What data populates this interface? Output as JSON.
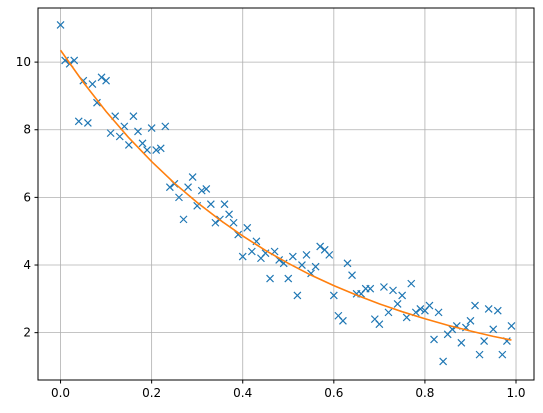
{
  "chart_data": {
    "type": "scatter",
    "xlim": [
      -0.0495,
      1.0395
    ],
    "ylim": [
      0.6,
      11.6
    ],
    "xticks": [
      {
        "value": 0,
        "label": "0.0"
      },
      {
        "value": 0.2,
        "label": "0.2"
      },
      {
        "value": 0.4,
        "label": "0.4"
      },
      {
        "value": 0.6,
        "label": "0.6"
      },
      {
        "value": 0.8,
        "label": "0.8"
      },
      {
        "value": 1,
        "label": "1.0"
      }
    ],
    "yticks": [
      2,
      4,
      6,
      8,
      10
    ],
    "grid": true,
    "series": [
      {
        "type": "scatter",
        "marker": "x",
        "color": "#1f77b4",
        "x": [
          0.0,
          0.01,
          0.02,
          0.03,
          0.04,
          0.05,
          0.06,
          0.07,
          0.08,
          0.09,
          0.1,
          0.11,
          0.12,
          0.13,
          0.14,
          0.15,
          0.16,
          0.17,
          0.18,
          0.19,
          0.2,
          0.21,
          0.22,
          0.23,
          0.24,
          0.25,
          0.26,
          0.27,
          0.28,
          0.29,
          0.3,
          0.31,
          0.32,
          0.33,
          0.34,
          0.35,
          0.36,
          0.37,
          0.38,
          0.39,
          0.4,
          0.41,
          0.42,
          0.43,
          0.44,
          0.45,
          0.46,
          0.47,
          0.48,
          0.49,
          0.5,
          0.51,
          0.52,
          0.53,
          0.54,
          0.55,
          0.56,
          0.57,
          0.58,
          0.59,
          0.6,
          0.61,
          0.62,
          0.63,
          0.64,
          0.65,
          0.66,
          0.67,
          0.68,
          0.69,
          0.7,
          0.71,
          0.72,
          0.73,
          0.74,
          0.75,
          0.76,
          0.77,
          0.78,
          0.79,
          0.8,
          0.81,
          0.82,
          0.83,
          0.84,
          0.85,
          0.86,
          0.87,
          0.88,
          0.89,
          0.9,
          0.91,
          0.92,
          0.93,
          0.94,
          0.95,
          0.96,
          0.97,
          0.98,
          0.99
        ],
        "values": [
          11.1,
          10.05,
          9.95,
          10.05,
          8.25,
          9.45,
          8.2,
          9.35,
          8.8,
          9.55,
          9.45,
          7.9,
          8.4,
          7.8,
          8.1,
          7.55,
          8.4,
          7.95,
          7.6,
          7.4,
          8.05,
          7.4,
          7.45,
          8.1,
          6.3,
          6.4,
          6.0,
          5.35,
          6.3,
          6.6,
          5.75,
          6.2,
          6.25,
          5.8,
          5.25,
          5.35,
          5.8,
          5.5,
          5.25,
          4.9,
          4.25,
          5.1,
          4.4,
          4.7,
          4.2,
          4.35,
          3.6,
          4.4,
          4.15,
          4.05,
          3.6,
          4.25,
          3.1,
          4.0,
          4.3,
          3.75,
          3.95,
          4.55,
          4.45,
          4.3,
          3.1,
          2.5,
          2.35,
          4.05,
          3.7,
          3.15,
          3.15,
          3.3,
          3.3,
          2.4,
          2.25,
          3.35,
          2.6,
          3.25,
          2.85,
          3.1,
          2.45,
          3.45,
          2.6,
          2.7,
          2.65,
          2.8,
          1.8,
          2.6,
          1.15,
          1.95,
          2.1,
          2.2,
          1.7,
          2.15,
          2.35,
          2.8,
          1.35,
          1.75,
          2.7,
          2.1,
          2.65,
          1.35,
          1.75,
          2.2
        ]
      },
      {
        "type": "line",
        "color": "#ff7f0e",
        "x": [
          0,
          0.05,
          0.1,
          0.15,
          0.2,
          0.25,
          0.3,
          0.35,
          0.4,
          0.45,
          0.5,
          0.55,
          0.6,
          0.65,
          0.7,
          0.75,
          0.8,
          0.85,
          0.9,
          0.95,
          0.99
        ],
        "values": [
          10.35,
          9.4,
          8.54,
          7.76,
          7.06,
          6.42,
          5.85,
          5.33,
          4.86,
          4.43,
          4.05,
          3.7,
          3.39,
          3.11,
          2.85,
          2.62,
          2.41,
          2.22,
          2.05,
          1.89,
          1.78
        ]
      }
    ]
  }
}
